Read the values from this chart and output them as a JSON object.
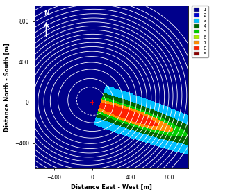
{
  "xlim": [
    -600,
    1000
  ],
  "ylim": [
    -650,
    950
  ],
  "xlabel": "Distance East - West [m]",
  "ylabel": "Distance North - South [m]",
  "cmap_colors": [
    "#00008B",
    "#0000CD",
    "#00BFFF",
    "#006400",
    "#00CC00",
    "#AAEE00",
    "#FF8C00",
    "#FF2000",
    "#8B0000"
  ],
  "legend_labels": [
    "1",
    "2",
    "3",
    "4",
    "5",
    "6",
    "7",
    "8",
    "9"
  ],
  "bg_color": "#00008B",
  "tower_x": 0,
  "tower_y": 0,
  "xticks": [
    -400,
    0,
    400,
    800
  ],
  "yticks": [
    -400,
    0,
    400,
    800
  ]
}
